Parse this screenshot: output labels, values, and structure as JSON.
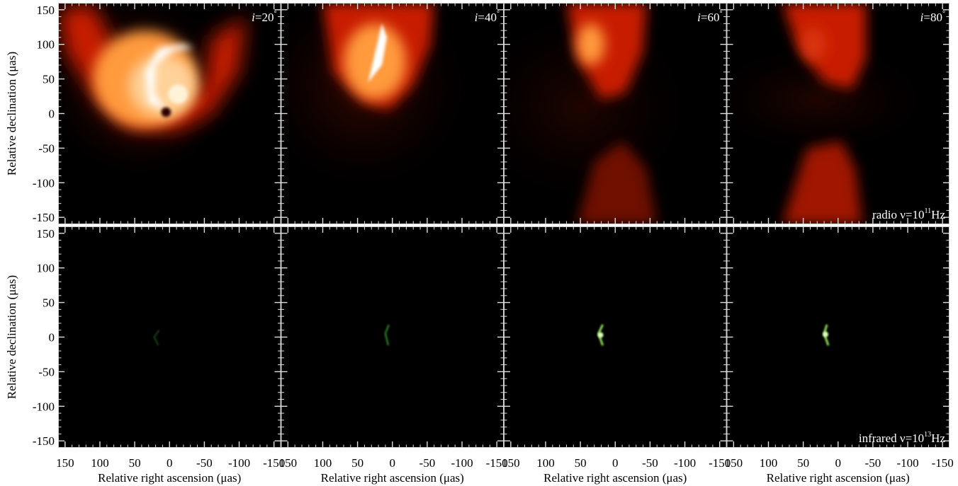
{
  "chart_data": {
    "type": "heatmap",
    "grid": {
      "rows": 2,
      "cols": 4
    },
    "xlabel": "Relative right ascension (μas)",
    "ylabel": "Relative declination (μas)",
    "xlim": [
      160,
      -160
    ],
    "ylim": [
      -160,
      160
    ],
    "x_ticks": [
      150,
      100,
      50,
      0,
      -50,
      -100,
      -150
    ],
    "y_ticks": [
      150,
      100,
      50,
      0,
      -50,
      -100,
      -150
    ],
    "x_tick_labels": [
      "150",
      "100",
      "50",
      "0",
      "-50",
      "-100",
      "-150"
    ],
    "y_tick_labels": [
      "150",
      "100",
      "50",
      "0",
      "-50",
      "-100",
      "-150"
    ],
    "columns": [
      {
        "label_italic": "i",
        "label_rest": "=20",
        "label_sup": "°",
        "inclination_deg": 20
      },
      {
        "label_italic": "i",
        "label_rest": "=40",
        "label_sup": "°",
        "inclination_deg": 40
      },
      {
        "label_italic": "i",
        "label_rest": "=60",
        "label_sup": "°",
        "inclination_deg": 60
      },
      {
        "label_italic": "i",
        "label_rest": "=80",
        "label_sup": "°",
        "inclination_deg": 80
      }
    ],
    "rows": [
      {
        "band": "radio",
        "label_main": "radio ν=10",
        "label_sup": "11",
        "label_unit": "Hz",
        "frequency_hz": 100000000000.0,
        "colormap": "hot"
      },
      {
        "band": "infrared",
        "label_main": "infrared ν=10",
        "label_sup": "13",
        "label_unit": "Hz",
        "frequency_hz": 10000000000000.0,
        "colormap": "green"
      }
    ],
    "colors": {
      "background": "#000000",
      "radio_dim": "#3a0500",
      "radio_mid": "#c81e00",
      "radio_bright": "#ff9a3c",
      "radio_peak": "#ffffff",
      "infrared_dim": "#0a3a0a",
      "infrared_peak": "#dcffb4",
      "frame": "#cccccc"
    }
  }
}
